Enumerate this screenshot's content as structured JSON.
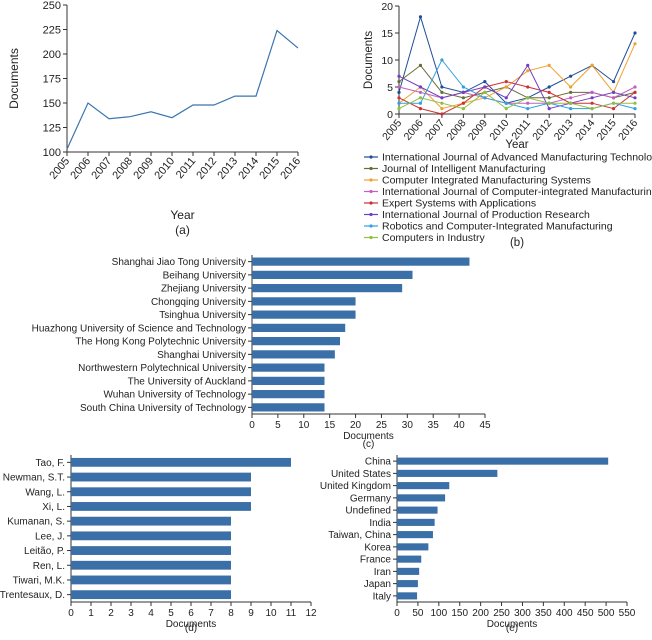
{
  "chart_data": [
    {
      "panel": "(a)",
      "type": "line",
      "x": [
        "2005",
        "2006",
        "2007",
        "2008",
        "2009",
        "2010",
        "2011",
        "2012",
        "2013",
        "2014",
        "2015",
        "2016"
      ],
      "values": [
        103,
        150,
        134,
        136,
        141,
        135,
        148,
        148,
        157,
        157,
        224,
        206
      ],
      "xlabel": "Year",
      "ylabel": "Documents",
      "ylim": [
        100,
        250
      ],
      "yticks": [
        100,
        125,
        150,
        175,
        200,
        225,
        250
      ],
      "color": "#3b75af"
    },
    {
      "panel": "(b)",
      "type": "line",
      "x": [
        "2005",
        "2006",
        "2007",
        "2008",
        "2009",
        "2010",
        "2011",
        "2012",
        "2013",
        "2014",
        "2015",
        "2016"
      ],
      "xlabel": "Year",
      "ylabel": "Documents",
      "ylim": [
        0,
        20
      ],
      "yticks": [
        0,
        5,
        10,
        15,
        20
      ],
      "legend_position": "below",
      "series": [
        {
          "name": "International Journal of Advanced Manufacturing Technology",
          "color": "#1f4e99",
          "values": [
            4,
            18,
            5,
            4,
            6,
            2,
            3,
            5,
            7,
            9,
            6,
            15
          ]
        },
        {
          "name": "Journal of Intelligent Manufacturing",
          "color": "#6b6b3a",
          "values": [
            6,
            9,
            4,
            3,
            4,
            5,
            3,
            3,
            4,
            4,
            3,
            4
          ]
        },
        {
          "name": "Computer Integrated Manufacturing Systems",
          "color": "#f0a030",
          "values": [
            2,
            5,
            1,
            2,
            3,
            5,
            8,
            9,
            5,
            9,
            4,
            13
          ]
        },
        {
          "name": "International Journal of Computer-integrated Manufacturing",
          "color": "#c060c0",
          "values": [
            5,
            4,
            3,
            4,
            3,
            2,
            2,
            2,
            3,
            4,
            3,
            5
          ]
        },
        {
          "name": "Expert Systems with Applications",
          "color": "#d03030",
          "values": [
            3,
            1,
            0,
            2,
            5,
            6,
            5,
            4,
            2,
            2,
            1,
            4
          ]
        },
        {
          "name": "International Journal of Production Research",
          "color": "#7040c0",
          "values": [
            7,
            5,
            3,
            4,
            5,
            3,
            9,
            1,
            2,
            3,
            4,
            3
          ]
        },
        {
          "name": "Robotics and Computer-Integrated Manufacturing",
          "color": "#30a0e0",
          "values": [
            2,
            2,
            10,
            5,
            3,
            2,
            1,
            2,
            1,
            1,
            2,
            1
          ]
        },
        {
          "name": "Computers in Industry",
          "color": "#90c040",
          "values": [
            1,
            3,
            2,
            1,
            4,
            1,
            3,
            2,
            2,
            1,
            2,
            2
          ]
        }
      ]
    },
    {
      "panel": "(c)",
      "type": "bar",
      "orientation": "horizontal",
      "categories": [
        "Shanghai Jiao Tong University",
        "Beihang University",
        "Zhejiang University",
        "Chongqing University",
        "Tsinghua University",
        "Huazhong University of Science and Technology",
        "The Hong Kong Polytechnic University",
        "Shanghai University",
        "Northwestern Polytechnical University",
        "The University of Auckland",
        "Wuhan University of Technology",
        "South China University of Technology"
      ],
      "values": [
        42,
        31,
        29,
        20,
        20,
        18,
        17,
        16,
        14,
        14,
        14,
        14
      ],
      "xlabel": "Documents",
      "xlim": [
        0,
        45
      ],
      "xticks": [
        0,
        5,
        10,
        15,
        20,
        25,
        30,
        35,
        40,
        45
      ],
      "color": "#3a6fa8"
    },
    {
      "panel": "(d)",
      "type": "bar",
      "orientation": "horizontal",
      "categories": [
        "Tao, F.",
        "Newman, S.T.",
        "Wang, L.",
        "Xi, L.",
        "Kumanan, S.",
        "Lee, J.",
        "Leitão, P.",
        "Ren, L.",
        "Tiwari, M.K.",
        "Trentesaux, D."
      ],
      "values": [
        11,
        9,
        9,
        9,
        8,
        8,
        8,
        8,
        8,
        8
      ],
      "xlabel": "Documents",
      "xlim": [
        0,
        12
      ],
      "xticks": [
        0,
        1,
        2,
        3,
        4,
        5,
        6,
        7,
        8,
        9,
        10,
        11,
        12
      ],
      "color": "#3a6fa8"
    },
    {
      "panel": "(e)",
      "type": "bar",
      "orientation": "horizontal",
      "categories": [
        "China",
        "United States",
        "United Kingdom",
        "Germany",
        "Undefined",
        "India",
        "Taiwan, China",
        "Korea",
        "France",
        "Iran",
        "Japan",
        "Italy"
      ],
      "values": [
        505,
        240,
        125,
        115,
        97,
        90,
        86,
        75,
        58,
        53,
        50,
        48
      ],
      "xlabel": "Documents",
      "xlim": [
        0,
        550
      ],
      "xticks": [
        0,
        50,
        100,
        150,
        200,
        250,
        300,
        350,
        400,
        450,
        500,
        550
      ],
      "color": "#3a6fa8"
    }
  ]
}
